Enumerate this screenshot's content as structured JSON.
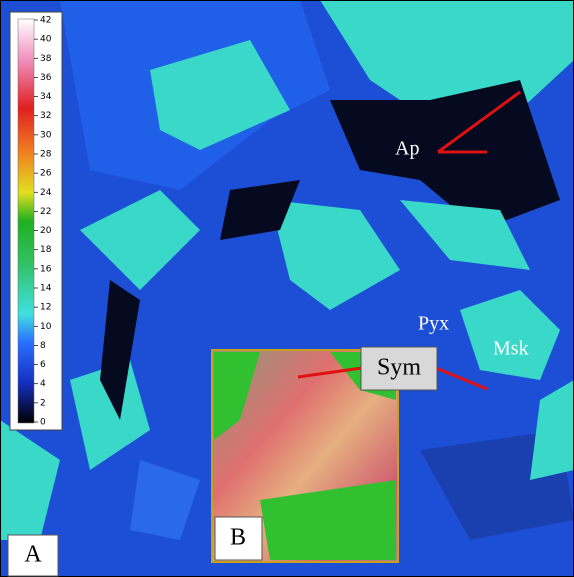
{
  "colorbar": {
    "ticks": [
      0,
      2,
      4,
      6,
      8,
      10,
      12,
      14,
      16,
      18,
      20,
      22,
      24,
      26,
      28,
      30,
      32,
      34,
      36,
      38,
      40,
      42
    ]
  },
  "labels": {
    "ap": "Ap",
    "pyx": "Pyx",
    "msk": "Msk",
    "sym": "Sym",
    "panel_a": "A",
    "panel_b": "B"
  }
}
